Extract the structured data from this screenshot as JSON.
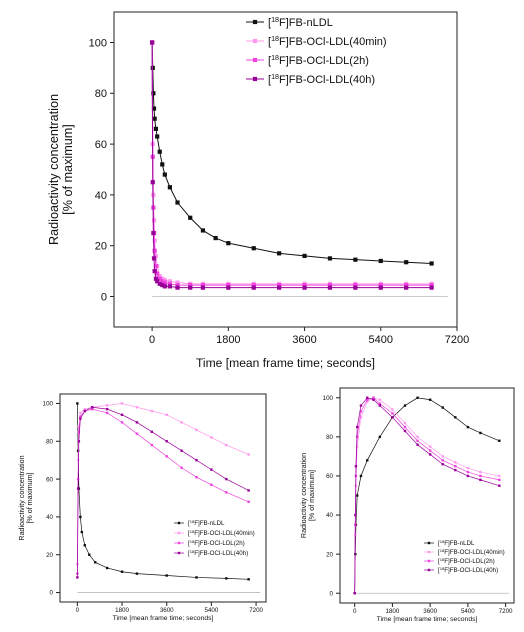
{
  "chart_data": [
    {
      "type": "line",
      "xlabel": "Time [mean frame time; seconds]",
      "ylabel": [
        "Radioactivity concentration",
        "[% of maximum]"
      ],
      "xlim": [
        -900,
        7200
      ],
      "ylim": [
        -12,
        112
      ],
      "xticks": [
        0,
        1800,
        3600,
        5400,
        7200
      ],
      "yticks": [
        0,
        20,
        40,
        60,
        80,
        100
      ],
      "legend_position": "top-right",
      "series": [
        {
          "name": "[18F]FB-nLDL",
          "color": "#111111",
          "marker": "square",
          "x": [
            0,
            15,
            30,
            45,
            60,
            90,
            120,
            180,
            240,
            300,
            420,
            600,
            900,
            1200,
            1500,
            1800,
            2400,
            3000,
            3600,
            4200,
            4800,
            5400,
            6000,
            6600
          ],
          "y": [
            100,
            90,
            80,
            74,
            70,
            66,
            63,
            57,
            52,
            48,
            43,
            37,
            31,
            26,
            23,
            21,
            19,
            17,
            16,
            15,
            14.5,
            14,
            13.5,
            13
          ]
        },
        {
          "name": "[18F]FB-OCl-LDL(40min)",
          "color": "#ff99ee",
          "marker": "square",
          "x": [
            0,
            15,
            30,
            45,
            60,
            90,
            120,
            180,
            240,
            300,
            420,
            600,
            900,
            1200,
            1800,
            2400,
            3000,
            3600,
            4200,
            4800,
            5400,
            6000,
            6600
          ],
          "y": [
            100,
            60,
            40,
            30,
            22,
            16,
            12,
            8,
            7,
            6.5,
            6,
            5.5,
            5,
            5,
            5,
            5,
            5,
            5,
            5,
            5,
            5,
            5,
            5
          ]
        },
        {
          "name": "[18F]FB-OCl-LDL(2h)",
          "color": "#ee44dd",
          "marker": "square",
          "x": [
            0,
            15,
            30,
            45,
            60,
            90,
            120,
            180,
            240,
            300,
            420,
            600,
            900,
            1200,
            1800,
            2400,
            3000,
            3600,
            4200,
            4800,
            5400,
            6000,
            6600
          ],
          "y": [
            100,
            55,
            35,
            25,
            18,
            12,
            9,
            7,
            6,
            5.5,
            5,
            4.5,
            4.5,
            4.5,
            4.5,
            4.5,
            4.5,
            4.5,
            4.5,
            4.5,
            4.5,
            4.5,
            4.5
          ]
        },
        {
          "name": "[18F]FB-OCl-LDL(40h)",
          "color": "#990099",
          "marker": "square",
          "x": [
            0,
            15,
            30,
            45,
            60,
            90,
            120,
            180,
            240,
            300,
            420,
            600,
            900,
            1200,
            1800,
            2400,
            3000,
            3600,
            4200,
            4800,
            5400,
            6000,
            6600
          ],
          "y": [
            100,
            45,
            25,
            15,
            10,
            7,
            6,
            5,
            4.5,
            4,
            4,
            3.5,
            3.5,
            3.5,
            3.5,
            3.5,
            3.5,
            3.5,
            3.5,
            3.5,
            3.5,
            3.5,
            3.5
          ]
        }
      ]
    },
    {
      "type": "line",
      "xlabel": "Time [mean frame time; seconds]",
      "ylabel": [
        "Radioactivity concentration",
        "[% of maximum]"
      ],
      "xlim": [
        -700,
        7600
      ],
      "ylim": [
        -5,
        105
      ],
      "xticks": [
        0,
        1800,
        3600,
        5400,
        7200
      ],
      "yticks": [
        0,
        20,
        40,
        60,
        80,
        100
      ],
      "legend_position": "lower-right",
      "series": [
        {
          "name": "[18F]FB-nLDL",
          "color": "#111111",
          "marker": "square",
          "x": [
            0,
            30,
            60,
            120,
            180,
            300,
            480,
            720,
            1200,
            1800,
            2400,
            3600,
            4800,
            6000,
            6900
          ],
          "y": [
            100,
            75,
            55,
            40,
            32,
            25,
            20,
            16,
            13,
            11,
            10,
            9,
            8,
            7.5,
            7
          ]
        },
        {
          "name": "[18F]FB-OCl-LDL(40min)",
          "color": "#ff99ee",
          "marker": "square",
          "x": [
            0,
            30,
            60,
            120,
            300,
            600,
            1200,
            1800,
            2400,
            3000,
            3600,
            4200,
            4800,
            5400,
            6000,
            6900
          ],
          "y": [
            15,
            70,
            88,
            95,
            97,
            98,
            99,
            100,
            98,
            96,
            94,
            90,
            86,
            82,
            78,
            73
          ]
        },
        {
          "name": "[18F]FB-OCl-LDL(2h)",
          "color": "#ee44dd",
          "marker": "square",
          "x": [
            0,
            30,
            60,
            120,
            300,
            600,
            1200,
            1800,
            2400,
            3000,
            3600,
            4200,
            4800,
            5400,
            6000,
            6900
          ],
          "y": [
            10,
            60,
            85,
            93,
            96,
            97,
            95,
            90,
            84,
            78,
            72,
            66,
            61,
            57,
            53,
            48
          ]
        },
        {
          "name": "[18F]FB-OCl-LDL(40h)",
          "color": "#990099",
          "marker": "square",
          "x": [
            0,
            30,
            60,
            120,
            300,
            600,
            1200,
            1800,
            2400,
            3000,
            3600,
            4200,
            4800,
            5400,
            6000,
            6900
          ],
          "y": [
            8,
            55,
            80,
            92,
            96,
            98,
            97,
            94,
            90,
            85,
            80,
            75,
            70,
            65,
            60,
            54
          ]
        }
      ]
    },
    {
      "type": "line",
      "xlabel": "Time [mean frame time; seconds]",
      "ylabel": [
        "Radioactivity concentration",
        "[% of maximum]"
      ],
      "xlim": [
        -700,
        7600
      ],
      "ylim": [
        -5,
        105
      ],
      "xticks": [
        0,
        1800,
        3600,
        5400,
        7200
      ],
      "yticks": [
        0,
        20,
        40,
        60,
        80,
        100
      ],
      "legend_position": "lower-right",
      "series": [
        {
          "name": "[18F]FB-nLDL",
          "color": "#111111",
          "marker": "square",
          "x": [
            0,
            30,
            60,
            120,
            300,
            600,
            1200,
            1800,
            2400,
            3000,
            3600,
            4200,
            4800,
            5400,
            6000,
            6900
          ],
          "y": [
            0,
            20,
            35,
            50,
            60,
            68,
            80,
            90,
            96,
            100,
            99,
            95,
            90,
            85,
            82,
            78
          ]
        },
        {
          "name": "[18F]FB-OCl-LDL(40min)",
          "color": "#ff99ee",
          "marker": "square",
          "x": [
            0,
            30,
            60,
            120,
            300,
            600,
            900,
            1200,
            1800,
            2400,
            3000,
            3600,
            4200,
            4800,
            5400,
            6000,
            6900
          ],
          "y": [
            0,
            30,
            55,
            75,
            90,
            98,
            100,
            99,
            94,
            87,
            80,
            75,
            70,
            67,
            64,
            62,
            60
          ]
        },
        {
          "name": "[18F]FB-OCl-LDL(2h)",
          "color": "#ee44dd",
          "marker": "square",
          "x": [
            0,
            30,
            60,
            120,
            300,
            600,
            900,
            1200,
            1800,
            2400,
            3000,
            3600,
            4200,
            4800,
            5400,
            6000,
            6900
          ],
          "y": [
            0,
            35,
            60,
            80,
            93,
            99,
            100,
            97,
            92,
            85,
            78,
            73,
            68,
            65,
            62,
            60,
            58
          ]
        },
        {
          "name": "[18F]FB-OCl-LDL(40h)",
          "color": "#990099",
          "marker": "square",
          "x": [
            0,
            30,
            60,
            120,
            300,
            600,
            900,
            1200,
            1800,
            2400,
            3000,
            3600,
            4200,
            4800,
            5400,
            6000,
            6900
          ],
          "y": [
            0,
            40,
            65,
            85,
            96,
            100,
            99,
            96,
            90,
            83,
            76,
            71,
            66,
            63,
            60,
            58,
            55
          ]
        }
      ]
    }
  ]
}
